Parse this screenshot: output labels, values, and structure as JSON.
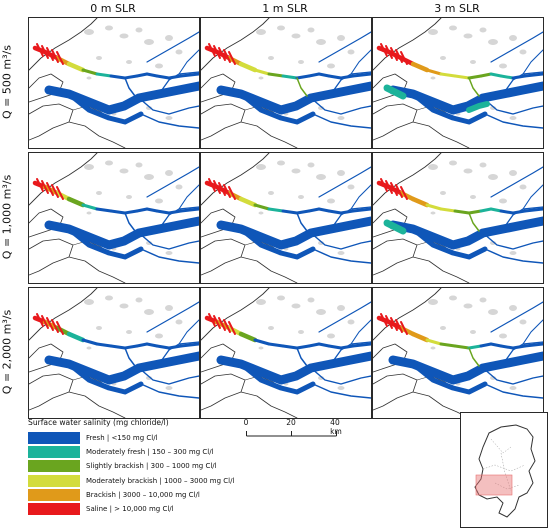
{
  "columns": [
    "0 m SLR",
    "1 m SLR",
    "3 m SLR"
  ],
  "rows": [
    "Q = 500 m³/s",
    "Q = 1,000 m³/s",
    "Q = 2,000 m³/s"
  ],
  "legend": {
    "title": "Surface water salinity (mg chloride/l)",
    "items": [
      {
        "label": "Fresh | <150 mg Cl/l",
        "color": "#0f56b8"
      },
      {
        "label": "Moderately fresh | 150 – 300 mg Cl/l",
        "color": "#1cb39a"
      },
      {
        "label": "Slightly brackish | 300 – 1000 mg Cl/l",
        "color": "#6aa51f"
      },
      {
        "label": "Moderately brackish | 1000 – 3000 mg Cl/l",
        "color": "#d3dc3c"
      },
      {
        "label": "Brackish | 3000 – 10,000 mg Cl/l",
        "color": "#e09a1a"
      },
      {
        "label": "Saline | > 10,000 mg Cl/l",
        "color": "#e8191c"
      }
    ]
  },
  "scalebar": {
    "ticks": [
      "0",
      "20",
      "40 km"
    ]
  },
  "colors": {
    "fresh": "#0f56b8",
    "mod_fresh": "#1cb39a",
    "slight": "#6aa51f",
    "mod_brack": "#d3dc3c",
    "brackish": "#e09a1a",
    "saline": "#e8191c",
    "urban": "#d6d6d6",
    "outline": "#333333",
    "extent": "#e77070"
  }
}
